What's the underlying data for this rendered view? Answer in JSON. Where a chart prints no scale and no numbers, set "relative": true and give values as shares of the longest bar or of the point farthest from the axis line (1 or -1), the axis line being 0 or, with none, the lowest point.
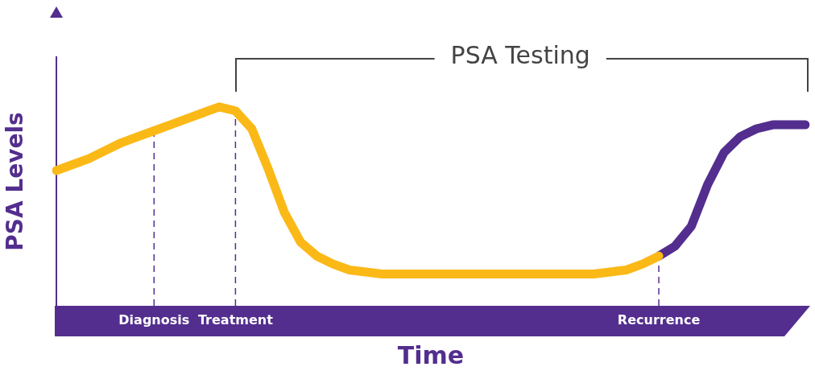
{
  "chart_data": {
    "type": "line",
    "relative": true,
    "ylabel": "PSA Levels",
    "xlabel": "Time",
    "categories": [
      null,
      null,
      null,
      null,
      null,
      null,
      "Diagnosis",
      null,
      null,
      null,
      null,
      "Treatment",
      null,
      null,
      null,
      null,
      null,
      null,
      null,
      null,
      null,
      null,
      null,
      null,
      null,
      null,
      null,
      null,
      null,
      null,
      null,
      null,
      null,
      null,
      null,
      null,
      null,
      "Recurrence",
      null,
      null,
      null,
      null,
      null,
      null,
      null,
      null,
      null
    ],
    "series": [
      {
        "color": "#fbb917",
        "values": [
          0.68,
          0.71,
          0.74,
          0.78,
          0.82,
          0.85,
          0.88,
          0.91,
          0.94,
          0.97,
          1.0,
          0.98,
          0.89,
          0.69,
          0.47,
          0.32,
          0.25,
          0.21,
          0.18,
          0.17,
          0.16,
          0.16,
          0.16,
          0.16,
          0.16,
          0.16,
          0.16,
          0.16,
          0.16,
          0.16,
          0.16,
          0.16,
          0.16,
          0.16,
          0.17,
          0.18,
          0.21,
          0.25,
          null,
          null,
          null,
          null,
          null,
          null,
          null,
          null,
          null
        ]
      },
      {
        "color": "#532e8e",
        "values": [
          null,
          null,
          null,
          null,
          null,
          null,
          null,
          null,
          null,
          null,
          null,
          null,
          null,
          null,
          null,
          null,
          null,
          null,
          null,
          null,
          null,
          null,
          null,
          null,
          null,
          null,
          null,
          null,
          null,
          null,
          null,
          null,
          null,
          null,
          null,
          null,
          null,
          0.25,
          0.3,
          0.4,
          0.61,
          0.77,
          0.85,
          0.89,
          0.91,
          0.91,
          0.91
        ]
      }
    ],
    "ref_lines": [
      {
        "axis": "x",
        "value": "Diagnosis",
        "color": "#532e8e",
        "line_style": "dashed"
      },
      {
        "axis": "x",
        "value": "Treatment",
        "color": "#532e8e",
        "line_style": "dashed"
      },
      {
        "axis": "x",
        "value": "Recurrence",
        "color": "#532e8e",
        "line_style": "dashed"
      }
    ],
    "annotations": [
      "PSA Testing"
    ],
    "legend": false,
    "grid": false,
    "marker": "none",
    "line_style": "solid"
  }
}
